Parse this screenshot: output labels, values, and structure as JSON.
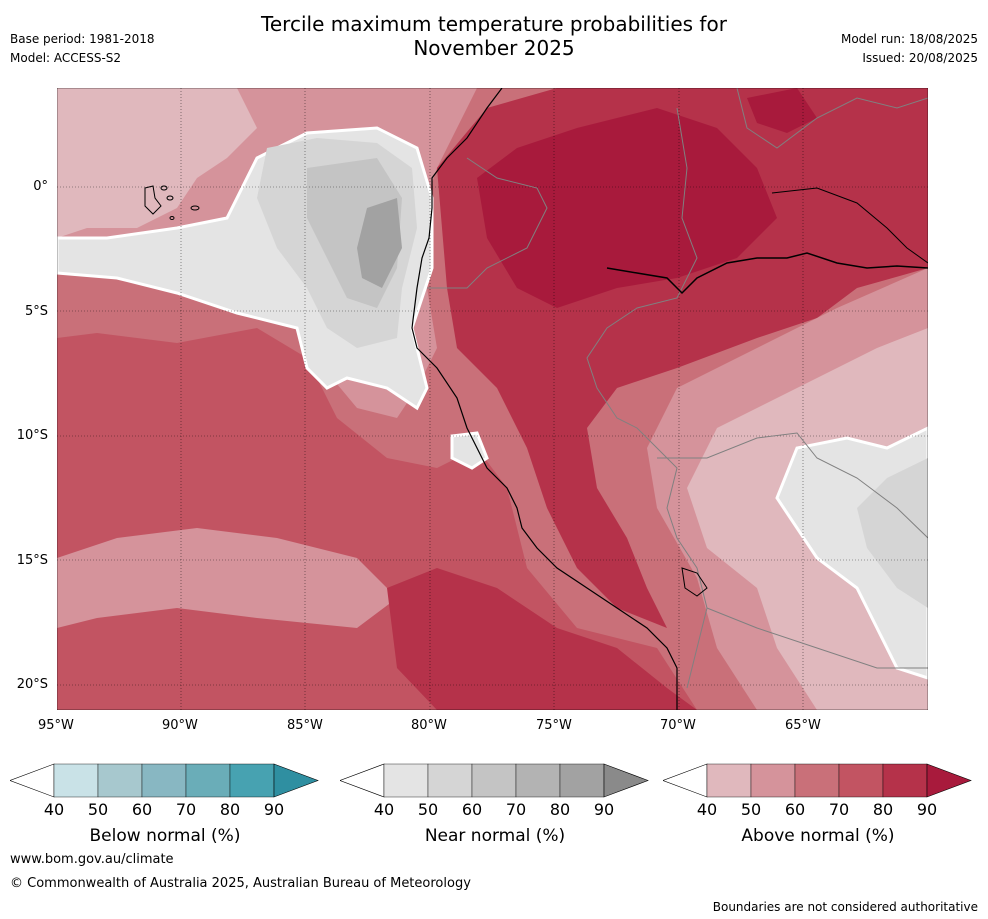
{
  "header": {
    "title_line1": "Tercile maximum temperature probabilities for",
    "title_line2": "November 2025",
    "base_period": "Base period: 1981-2018",
    "model": "Model: ACCESS-S2",
    "model_run": "Model run: 18/08/2025",
    "issued": "Issued: 20/08/2025"
  },
  "map": {
    "lon_ticks": [
      "95°W",
      "90°W",
      "85°W",
      "80°W",
      "75°W",
      "70°W",
      "65°W"
    ],
    "lat_ticks": [
      "0°",
      "5°S",
      "10°S",
      "15°S",
      "20°S"
    ],
    "colors": {
      "above": [
        "#e0b8bd",
        "#d5939b",
        "#c97079",
        "#c25462",
        "#b5324a",
        "#a81a3c"
      ],
      "near": [
        "#e4e4e4",
        "#d5d5d5",
        "#c4c4c4",
        "#b3b3b3",
        "#a2a2a2",
        "#8a8a8a"
      ],
      "below": [
        "#c9e2e7",
        "#a7c8ce",
        "#88b7c2",
        "#6aadb8",
        "#47a2b1",
        "#2f8fa1"
      ],
      "coastline": "#000000",
      "borders": "#808080",
      "tercile_boundary": "#ffffff"
    }
  },
  "colorbars": [
    {
      "label": "Below normal (%)",
      "ticks": [
        "40",
        "50",
        "60",
        "70",
        "80",
        "90"
      ],
      "colors": [
        "#ffffff",
        "#c9e2e7",
        "#a7c8ce",
        "#88b7c2",
        "#6aadb8",
        "#47a2b1",
        "#2f8fa1"
      ]
    },
    {
      "label": "Near normal (%)",
      "ticks": [
        "40",
        "50",
        "60",
        "70",
        "80",
        "90"
      ],
      "colors": [
        "#ffffff",
        "#e4e4e4",
        "#d5d5d5",
        "#c4c4c4",
        "#b3b3b3",
        "#a2a2a2",
        "#8a8a8a"
      ]
    },
    {
      "label": "Above normal (%)",
      "ticks": [
        "40",
        "50",
        "60",
        "70",
        "80",
        "90"
      ],
      "colors": [
        "#ffffff",
        "#e0b8bd",
        "#d5939b",
        "#c97079",
        "#c25462",
        "#b5324a",
        "#a81a3c"
      ]
    }
  ],
  "footer": {
    "url": "www.bom.gov.au/climate",
    "copyright": "© Commonwealth of Australia 2025, Australian Bureau of Meteorology",
    "disclaimer": "Boundaries are not considered authoritative"
  }
}
